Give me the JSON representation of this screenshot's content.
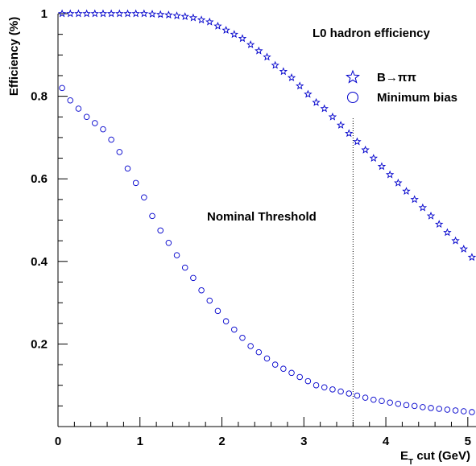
{
  "chart_data": {
    "type": "scatter",
    "title": "L0 hadron efficiency",
    "xlabel": "E_T cut (GeV)",
    "ylabel": "Efficiency (%)",
    "xlim": [
      0,
      5.1
    ],
    "ylim": [
      0,
      1
    ],
    "grid": false,
    "legend_position": "top-right",
    "x_ticks": [
      0,
      1,
      2,
      3,
      4,
      5
    ],
    "y_ticks": [
      0.2,
      0.4,
      0.6,
      0.8,
      1
    ],
    "x_tick_labels": [
      "0",
      "1",
      "2",
      "3",
      "4",
      "5"
    ],
    "y_tick_labels": [
      "0.2",
      "0.4",
      "0.6",
      "0.8",
      "1"
    ],
    "annotation": {
      "text": "Nominal Threshold",
      "x_line": 3.6
    },
    "series": [
      {
        "name": "B→ππ",
        "marker": "star-icon",
        "color": "#0000cc",
        "x": [
          0.05,
          0.15,
          0.25,
          0.35,
          0.45,
          0.55,
          0.65,
          0.75,
          0.85,
          0.95,
          1.05,
          1.15,
          1.25,
          1.35,
          1.45,
          1.55,
          1.65,
          1.75,
          1.85,
          1.95,
          2.05,
          2.15,
          2.25,
          2.35,
          2.45,
          2.55,
          2.65,
          2.75,
          2.85,
          2.95,
          3.05,
          3.15,
          3.25,
          3.35,
          3.45,
          3.55,
          3.65,
          3.75,
          3.85,
          3.95,
          4.05,
          4.15,
          4.25,
          4.35,
          4.45,
          4.55,
          4.65,
          4.75,
          4.85,
          4.95,
          5.05
        ],
        "y": [
          1,
          1,
          1,
          1,
          1,
          1,
          1,
          1,
          1,
          1,
          1,
          0.999,
          0.998,
          0.997,
          0.995,
          0.993,
          0.99,
          0.985,
          0.98,
          0.97,
          0.96,
          0.95,
          0.94,
          0.925,
          0.91,
          0.895,
          0.875,
          0.86,
          0.845,
          0.825,
          0.805,
          0.785,
          0.77,
          0.75,
          0.73,
          0.71,
          0.69,
          0.67,
          0.65,
          0.63,
          0.61,
          0.59,
          0.57,
          0.55,
          0.53,
          0.51,
          0.49,
          0.47,
          0.45,
          0.43,
          0.41
        ]
      },
      {
        "name": "Minimum bias",
        "marker": "circle-icon",
        "color": "#0000cc",
        "x": [
          0.05,
          0.15,
          0.25,
          0.35,
          0.45,
          0.55,
          0.65,
          0.75,
          0.85,
          0.95,
          1.05,
          1.15,
          1.25,
          1.35,
          1.45,
          1.55,
          1.65,
          1.75,
          1.85,
          1.95,
          2.05,
          2.15,
          2.25,
          2.35,
          2.45,
          2.55,
          2.65,
          2.75,
          2.85,
          2.95,
          3.05,
          3.15,
          3.25,
          3.35,
          3.45,
          3.55,
          3.65,
          3.75,
          3.85,
          3.95,
          4.05,
          4.15,
          4.25,
          4.35,
          4.45,
          4.55,
          4.65,
          4.75,
          4.85,
          4.95,
          5.05
        ],
        "y": [
          0.82,
          0.79,
          0.77,
          0.75,
          0.735,
          0.72,
          0.695,
          0.665,
          0.625,
          0.59,
          0.555,
          0.51,
          0.475,
          0.445,
          0.415,
          0.385,
          0.36,
          0.33,
          0.305,
          0.28,
          0.255,
          0.235,
          0.215,
          0.195,
          0.18,
          0.165,
          0.15,
          0.14,
          0.13,
          0.12,
          0.11,
          0.1,
          0.095,
          0.09,
          0.085,
          0.08,
          0.075,
          0.07,
          0.065,
          0.062,
          0.058,
          0.055,
          0.052,
          0.05,
          0.047,
          0.045,
          0.043,
          0.041,
          0.039,
          0.037,
          0.035
        ]
      }
    ]
  }
}
